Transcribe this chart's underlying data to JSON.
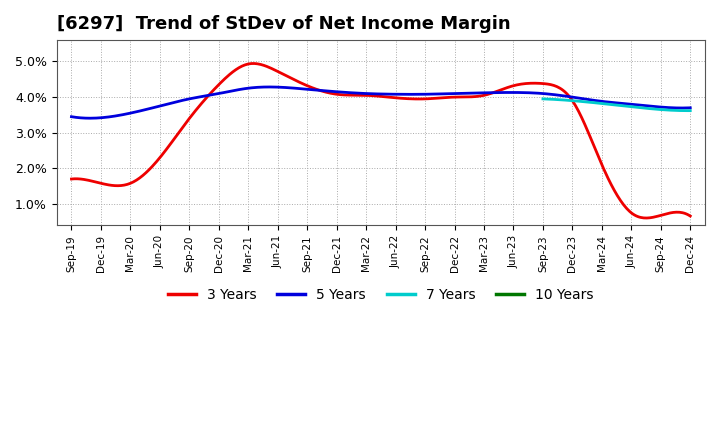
{
  "title": "[6297]  Trend of StDev of Net Income Margin",
  "title_fontsize": 13,
  "background_color": "#ffffff",
  "plot_background": "#ffffff",
  "grid_color": "#aaaaaa",
  "grid_style": "dotted",
  "x_labels": [
    "Sep-19",
    "Dec-19",
    "Mar-20",
    "Jun-20",
    "Sep-20",
    "Dec-20",
    "Mar-21",
    "Jun-21",
    "Sep-21",
    "Dec-21",
    "Mar-22",
    "Jun-22",
    "Sep-22",
    "Dec-22",
    "Mar-23",
    "Jun-23",
    "Sep-23",
    "Dec-23",
    "Mar-24",
    "Jun-24",
    "Sep-24",
    "Dec-24"
  ],
  "y_ticks": [
    0.01,
    0.02,
    0.03,
    0.04,
    0.05
  ],
  "y_tick_labels": [
    "1.0%",
    "2.0%",
    "3.0%",
    "4.0%",
    "5.0%"
  ],
  "ylim": [
    0.004,
    0.056
  ],
  "series": {
    "3 Years": {
      "color": "#ee0000",
      "linewidth": 2.0,
      "values": [
        0.017,
        0.0158,
        0.0158,
        0.023,
        0.034,
        0.0435,
        0.0493,
        0.0472,
        0.0432,
        0.0408,
        0.0405,
        0.0398,
        0.0395,
        0.04,
        0.0405,
        0.0432,
        0.0438,
        0.039,
        0.021,
        0.0075,
        0.0068,
        0.0066
      ]
    },
    "5 Years": {
      "color": "#0000dd",
      "linewidth": 2.0,
      "values": [
        0.0345,
        0.0342,
        0.0355,
        0.0375,
        0.0395,
        0.041,
        0.0425,
        0.0428,
        0.0422,
        0.0415,
        0.041,
        0.0408,
        0.0408,
        0.041,
        0.0412,
        0.0413,
        0.041,
        0.04,
        0.0388,
        0.038,
        0.0372,
        0.037
      ]
    },
    "7 Years": {
      "color": "#00cccc",
      "linewidth": 2.0,
      "values": [
        null,
        null,
        null,
        null,
        null,
        null,
        null,
        null,
        null,
        null,
        null,
        null,
        null,
        null,
        null,
        null,
        0.0395,
        0.039,
        0.0382,
        0.0373,
        0.0365,
        0.0362
      ]
    },
    "10 Years": {
      "color": "#007700",
      "linewidth": 2.0,
      "values": [
        null,
        null,
        null,
        null,
        null,
        null,
        null,
        null,
        null,
        null,
        null,
        null,
        null,
        null,
        null,
        null,
        null,
        null,
        null,
        null,
        null,
        null
      ]
    }
  },
  "legend": {
    "labels": [
      "3 Years",
      "5 Years",
      "7 Years",
      "10 Years"
    ],
    "colors": [
      "#ee0000",
      "#0000dd",
      "#00cccc",
      "#007700"
    ],
    "fontsize": 10
  }
}
